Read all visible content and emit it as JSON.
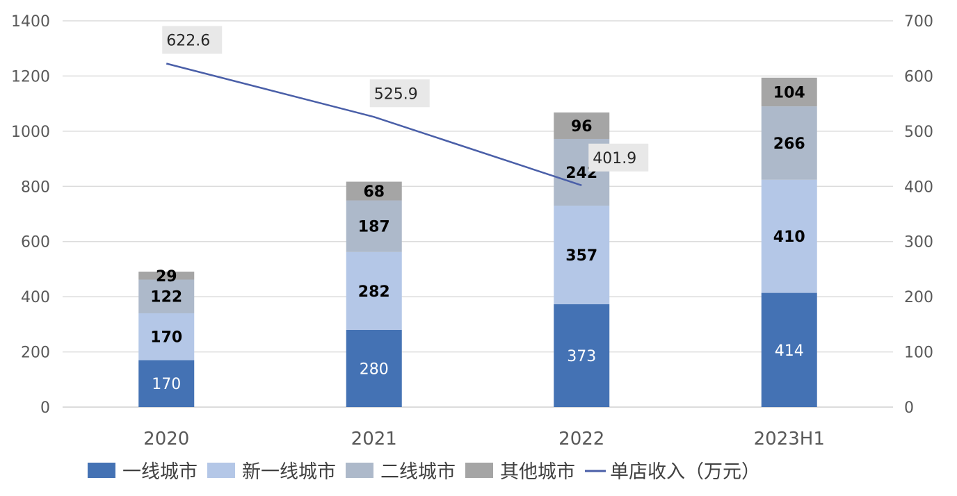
{
  "chart_data": {
    "type": "bar",
    "stacked": true,
    "categories": [
      "2020",
      "2021",
      "2022",
      "2023H1"
    ],
    "series": [
      {
        "name": "一线城市",
        "type": "bar",
        "color": "#4472b4",
        "values": [
          170,
          280,
          373,
          414
        ],
        "labels": [
          "170",
          "280",
          "373",
          "414"
        ]
      },
      {
        "name": "新一线城市",
        "type": "bar",
        "color": "#b4c7e7",
        "values": [
          170,
          282,
          357,
          410
        ],
        "labels": [
          "170",
          "282",
          "357",
          "410"
        ]
      },
      {
        "name": "二线城市",
        "type": "bar",
        "color": "#adb9ca",
        "values": [
          122,
          187,
          242,
          266
        ],
        "labels": [
          "122",
          "187",
          "242",
          "266"
        ]
      },
      {
        "name": "其他城市",
        "type": "bar",
        "color": "#a5a5a5",
        "values": [
          29,
          68,
          96,
          104
        ],
        "labels": [
          "29",
          "68",
          "96",
          "104"
        ]
      },
      {
        "name": "单店收入（万元）",
        "type": "line",
        "axis": "right",
        "color": "#4a5fa8",
        "values": [
          622.6,
          525.9,
          401.9,
          null
        ],
        "labels": [
          "622.6",
          "525.9",
          "401.9",
          ""
        ]
      }
    ],
    "y_left": {
      "min": 0,
      "max": 1400,
      "step": 200,
      "ticks": [
        "0",
        "200",
        "400",
        "600",
        "800",
        "1000",
        "1200",
        "1400"
      ]
    },
    "y_right": {
      "min": 0,
      "max": 700,
      "step": 100,
      "ticks": [
        "0",
        "100",
        "200",
        "300",
        "400",
        "500",
        "600",
        "700"
      ]
    },
    "grid": true,
    "legend": {
      "position": "bottom",
      "entries": [
        "一线城市",
        "新一线城市",
        "二线城市",
        "其他城市",
        "单店收入（万元）"
      ]
    },
    "title": "",
    "xlabel": "",
    "ylabel": ""
  }
}
